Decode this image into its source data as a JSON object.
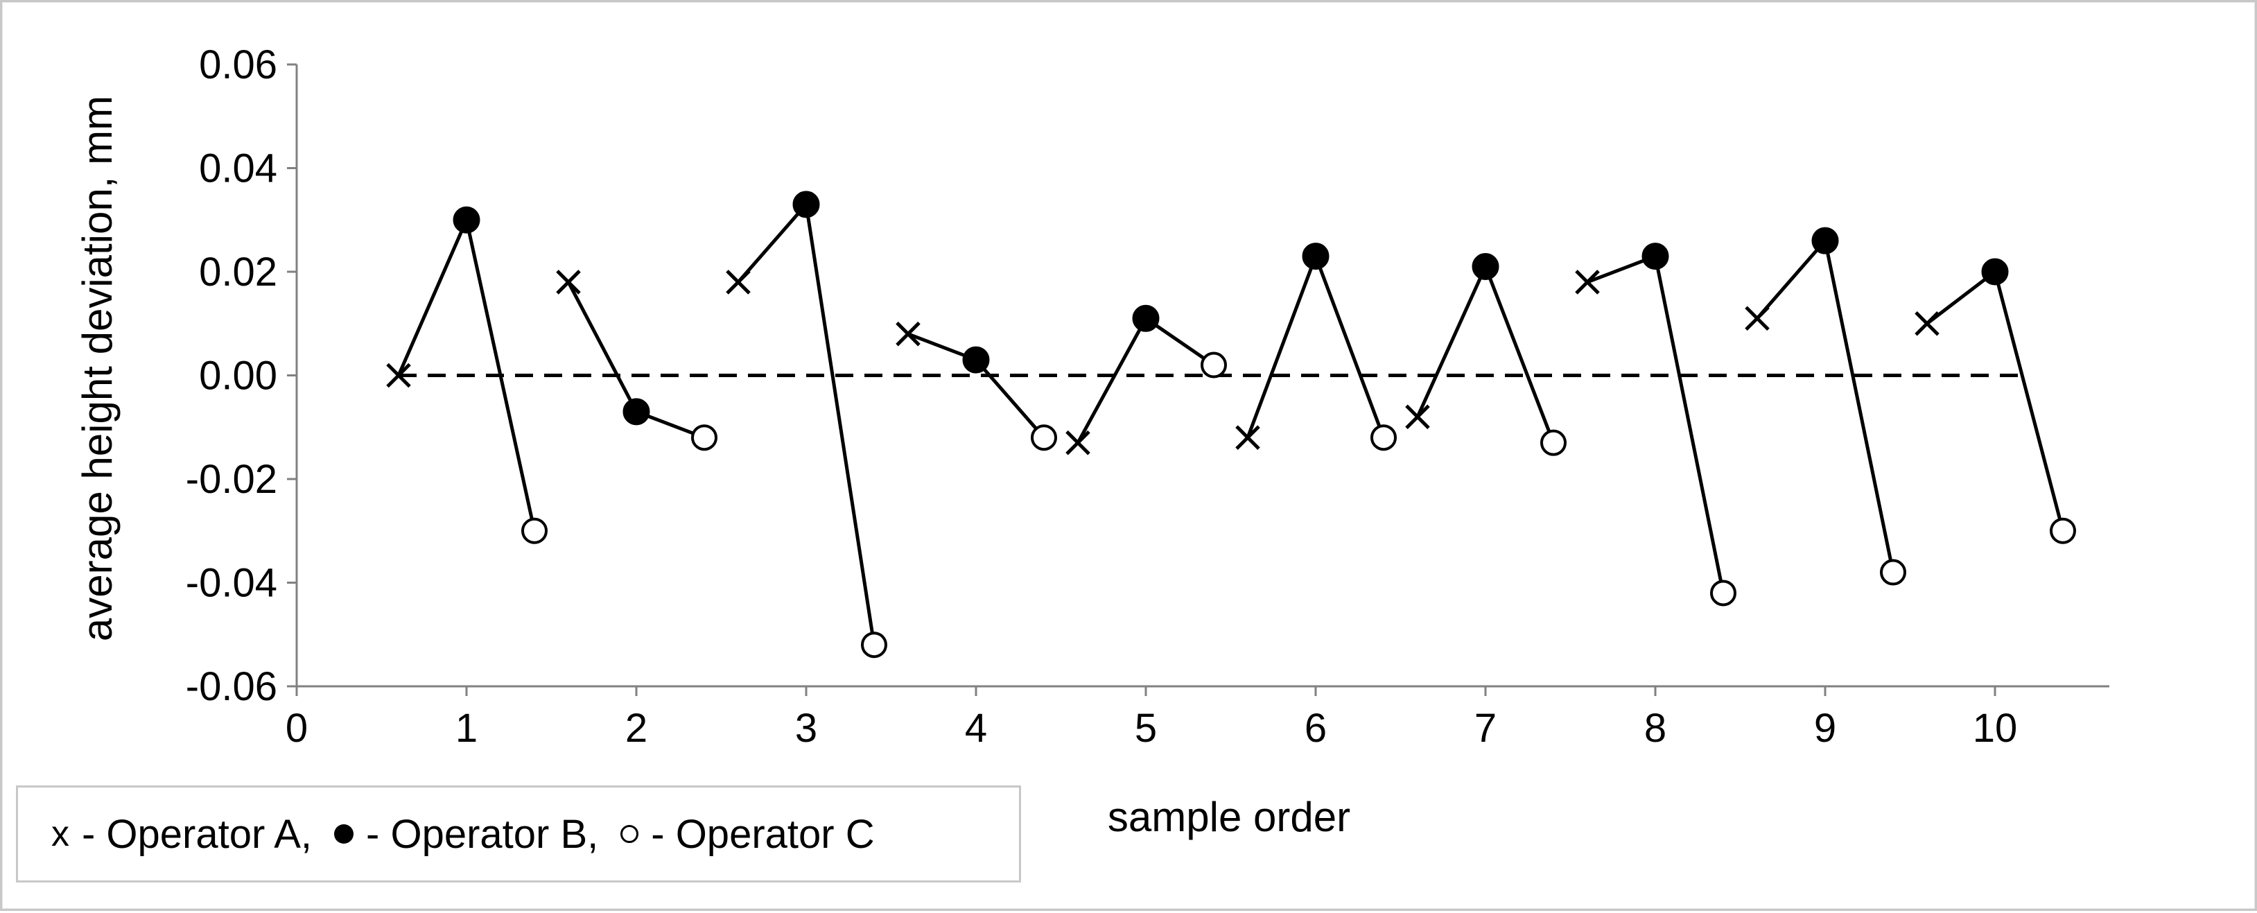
{
  "chart_data": {
    "type": "line",
    "title": "",
    "xlabel": "sample order",
    "ylabel": "average height  deviation, mm",
    "xlim": [
      0,
      10.5
    ],
    "ylim": [
      -0.06,
      0.06
    ],
    "x_ticks": [
      "0",
      "1",
      "2",
      "3",
      "4",
      "5",
      "6",
      "7",
      "8",
      "9",
      "10"
    ],
    "y_ticks": [
      "0.06",
      "0.04",
      "0.02",
      "0.00",
      "-0.02",
      "-0.04",
      "-0.06"
    ],
    "reference_line": {
      "y": 0.0,
      "x_range": [
        0.6,
        10.2
      ],
      "style": "dashed"
    },
    "groups": [
      {
        "sample": 1,
        "points": [
          {
            "x": 0.6,
            "y": 0.0,
            "operator": "A"
          },
          {
            "x": 1.0,
            "y": 0.03,
            "operator": "B"
          },
          {
            "x": 1.4,
            "y": -0.03,
            "operator": "C"
          }
        ]
      },
      {
        "sample": 2,
        "points": [
          {
            "x": 1.6,
            "y": 0.018,
            "operator": "A"
          },
          {
            "x": 2.0,
            "y": -0.007,
            "operator": "B"
          },
          {
            "x": 2.4,
            "y": -0.012,
            "operator": "C"
          }
        ]
      },
      {
        "sample": 3,
        "points": [
          {
            "x": 2.6,
            "y": 0.018,
            "operator": "A"
          },
          {
            "x": 3.0,
            "y": 0.033,
            "operator": "B"
          },
          {
            "x": 3.4,
            "y": -0.052,
            "operator": "C"
          }
        ]
      },
      {
        "sample": 4,
        "points": [
          {
            "x": 3.6,
            "y": 0.008,
            "operator": "A"
          },
          {
            "x": 4.0,
            "y": 0.003,
            "operator": "B"
          },
          {
            "x": 4.4,
            "y": -0.012,
            "operator": "C"
          }
        ]
      },
      {
        "sample": 5,
        "points": [
          {
            "x": 4.6,
            "y": -0.013,
            "operator": "A"
          },
          {
            "x": 5.0,
            "y": 0.011,
            "operator": "B"
          },
          {
            "x": 5.4,
            "y": 0.002,
            "operator": "C"
          }
        ]
      },
      {
        "sample": 6,
        "points": [
          {
            "x": 5.6,
            "y": -0.012,
            "operator": "A"
          },
          {
            "x": 6.0,
            "y": 0.023,
            "operator": "B"
          },
          {
            "x": 6.4,
            "y": -0.012,
            "operator": "C"
          }
        ]
      },
      {
        "sample": 7,
        "points": [
          {
            "x": 6.6,
            "y": -0.008,
            "operator": "A"
          },
          {
            "x": 7.0,
            "y": 0.021,
            "operator": "B"
          },
          {
            "x": 7.4,
            "y": -0.013,
            "operator": "C"
          }
        ]
      },
      {
        "sample": 8,
        "points": [
          {
            "x": 7.6,
            "y": 0.018,
            "operator": "A"
          },
          {
            "x": 8.0,
            "y": 0.023,
            "operator": "B"
          },
          {
            "x": 8.4,
            "y": -0.042,
            "operator": "C"
          }
        ]
      },
      {
        "sample": 9,
        "points": [
          {
            "x": 8.6,
            "y": 0.011,
            "operator": "A"
          },
          {
            "x": 9.0,
            "y": 0.026,
            "operator": "B"
          },
          {
            "x": 9.4,
            "y": -0.038,
            "operator": "C"
          }
        ]
      },
      {
        "sample": 10,
        "points": [
          {
            "x": 9.6,
            "y": 0.01,
            "operator": "A"
          },
          {
            "x": 10.0,
            "y": 0.02,
            "operator": "B"
          },
          {
            "x": 10.4,
            "y": -0.03,
            "operator": "C"
          }
        ]
      }
    ],
    "markers": {
      "A": "cross",
      "B": "filled-circle",
      "C": "open-circle"
    },
    "legend": {
      "placement": "bottom-left",
      "entries": [
        {
          "symbol": "x",
          "label": "- Operator A,"
        },
        {
          "symbol": "filled-circle",
          "label": "- Operator B,"
        },
        {
          "symbol": "open-circle",
          "label": "- Operator C"
        }
      ]
    },
    "grid": false,
    "colors": {
      "line": "#000000",
      "marker": "#000000",
      "axis": "#808080"
    }
  }
}
